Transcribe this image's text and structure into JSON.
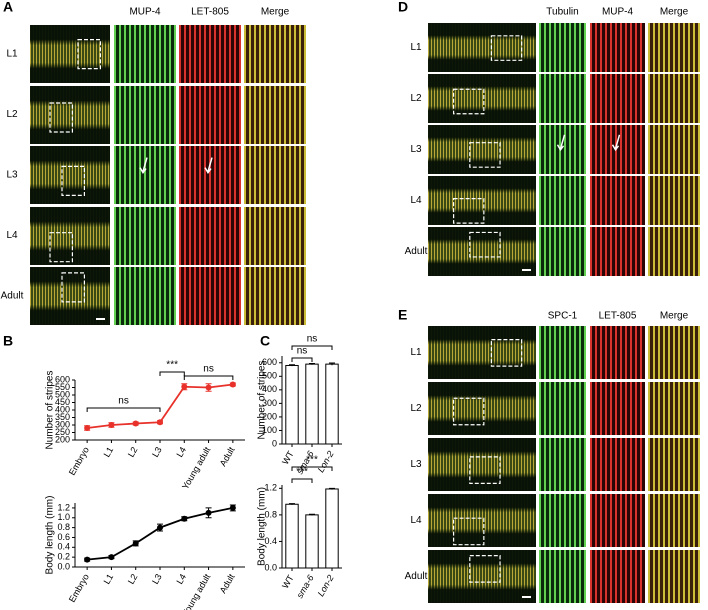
{
  "panels": [
    {
      "label": "A",
      "columns": [
        "MUP-4",
        "LET-805",
        "Merge"
      ],
      "rows": [
        "L1",
        "L2",
        "L3",
        "L4",
        "Adult"
      ]
    },
    {
      "label": "D",
      "columns": [
        "Tubulin",
        "MUP-4",
        "Merge"
      ],
      "rows": [
        "L1",
        "L2",
        "L3",
        "L4",
        "Adult"
      ]
    },
    {
      "label": "E",
      "columns": [
        "SPC-1",
        "LET-805",
        "Merge"
      ],
      "rows": [
        "L1",
        "L2",
        "L3",
        "L4",
        "Adult"
      ]
    },
    {
      "label": "B"
    },
    {
      "label": "C"
    }
  ],
  "chart_data": [
    {
      "type": "line",
      "ylabel": "Number of stripes",
      "categories": [
        "Embryo",
        "L1",
        "L2",
        "L3",
        "L4",
        "Young adult",
        "Adult"
      ],
      "series": [
        {
          "color": "#e8312a",
          "values": [
            280,
            300,
            310,
            318,
            555,
            550,
            570
          ],
          "errors": [
            15,
            15,
            10,
            10,
            20,
            25,
            10
          ]
        }
      ],
      "ylim": [
        200,
        600
      ],
      "yticks": [
        200,
        250,
        300,
        350,
        400,
        450,
        500,
        550,
        600
      ],
      "annotations": [
        "ns",
        "***",
        "ns"
      ]
    },
    {
      "type": "line",
      "ylabel": "Body length (mm)",
      "categories": [
        "Embryo",
        "L1",
        "L2",
        "L3",
        "L4",
        "Young adult",
        "Adult"
      ],
      "series": [
        {
          "color": "#000000",
          "values": [
            0.15,
            0.2,
            0.48,
            0.8,
            0.98,
            1.1,
            1.2
          ],
          "errors": [
            0.03,
            0.03,
            0.05,
            0.07,
            0.04,
            0.1,
            0.06
          ]
        }
      ],
      "ylim": [
        0,
        1.3
      ],
      "yticks": [
        {
          "value": 0,
          "label": "0.0"
        },
        0.2,
        0.4,
        0.6,
        0.8,
        {
          "value": 1,
          "label": "1.0"
        },
        1.2
      ]
    },
    {
      "type": "bar",
      "ylabel": "Number of stripes",
      "categories": [
        "WT",
        "sma-6",
        "Lon-2"
      ],
      "series": [
        {
          "color": "#ffffff",
          "values": [
            580,
            590,
            590
          ],
          "errors": [
            5,
            5,
            8
          ]
        }
      ],
      "ylim": [
        0,
        650
      ],
      "yticks": [
        0,
        100,
        200,
        300,
        400,
        500,
        600
      ],
      "annotations": [
        "ns",
        "ns"
      ]
    },
    {
      "type": "bar",
      "ylabel": "Body length (mm)",
      "categories": [
        "WT",
        "sma-6",
        "Lon-2"
      ],
      "series": [
        {
          "color": "#ffffff",
          "values": [
            0.96,
            0.8,
            1.19
          ],
          "errors": [
            0.01,
            0.01,
            0.01
          ]
        }
      ],
      "ylim": [
        0,
        1.25
      ],
      "yticks": [
        {
          "value": 0,
          "label": "0.0"
        },
        0.4,
        0.8,
        1.2
      ],
      "annotations": [
        "***",
        "***"
      ]
    }
  ]
}
